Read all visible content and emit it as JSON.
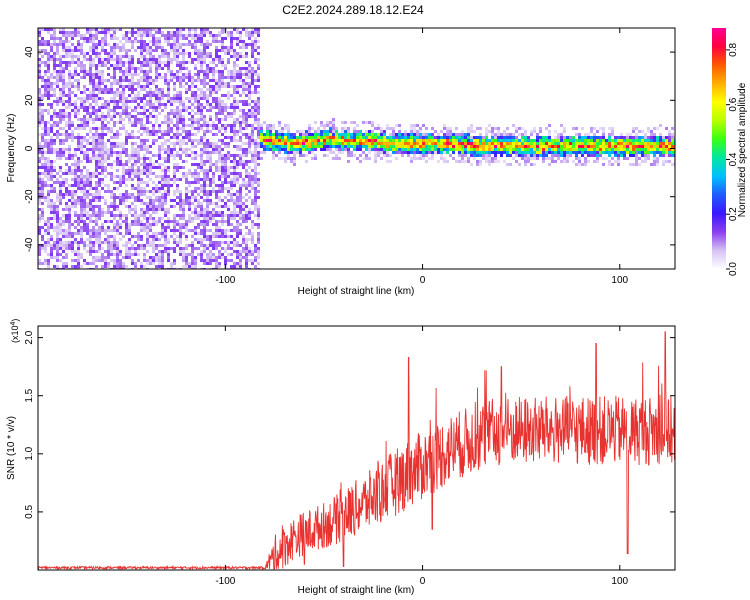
{
  "title": "C2E2.2024.289.18.12.E24",
  "colors": {
    "axis": "#000000",
    "snr_line": "#e8322f"
  },
  "chart_data": [
    {
      "type": "heatmap",
      "id": "spectrogram",
      "xlabel": "Height of straight line (km)",
      "ylabel": "Frequency (Hz)",
      "xlim": [
        -195,
        128
      ],
      "ylim": [
        -50,
        50
      ],
      "x_ticks": [
        -100,
        0,
        100
      ],
      "x_tick_labels": [
        "-100",
        "0",
        "100"
      ],
      "y_ticks": [
        -40,
        -20,
        0,
        20,
        40
      ],
      "y_tick_labels": [
        "-40",
        "-20",
        "0",
        "20",
        "40"
      ],
      "colorbar": {
        "label": "Normalized spectral amplitude",
        "range": [
          0.0,
          0.88
        ],
        "ticks": [
          0.0,
          0.2,
          0.4,
          0.6,
          0.8
        ],
        "tick_labels": [
          "0.0",
          "0.2",
          "0.4",
          "0.6",
          "0.8"
        ],
        "colormap": [
          "#ffffff",
          "#d6c2f3",
          "#8a3ff0",
          "#3a18ff",
          "#1f5bff",
          "#00bfff",
          "#00e6a0",
          "#39ff14",
          "#b6ff00",
          "#ffff00",
          "#ffb000",
          "#ff5a00",
          "#ff0040",
          "#ff0090"
        ]
      },
      "noise_region_x": [
        -195,
        -83
      ],
      "signal_region_x": [
        -83,
        128
      ],
      "signal_center_freq_hz": [
        [
          -90,
          1
        ],
        [
          -83,
          4
        ],
        [
          -75,
          3
        ],
        [
          -65,
          2
        ],
        [
          -55,
          3
        ],
        [
          -45,
          4
        ],
        [
          -35,
          3
        ],
        [
          -25,
          3
        ],
        [
          -15,
          2
        ],
        [
          -5,
          2
        ],
        [
          5,
          2
        ],
        [
          15,
          2
        ],
        [
          25,
          1
        ],
        [
          35,
          1
        ],
        [
          45,
          1
        ],
        [
          55,
          1
        ],
        [
          65,
          1
        ],
        [
          75,
          1
        ],
        [
          85,
          1
        ],
        [
          95,
          1
        ],
        [
          105,
          1
        ],
        [
          115,
          1
        ],
        [
          128,
          1
        ]
      ],
      "grid": false
    },
    {
      "type": "line",
      "id": "snr",
      "xlabel": "Height of straight line (km)",
      "ylabel": "SNR (10 * v/v)",
      "y_multiplier_label": "(x10",
      "y_multiplier_exp": "4",
      "y_multiplier_close": ")",
      "xlim": [
        -195,
        128
      ],
      "ylim": [
        0,
        2.1
      ],
      "x_ticks": [
        -100,
        0,
        100
      ],
      "x_tick_labels": [
        "-100",
        "0",
        "100"
      ],
      "y_ticks": [
        0.5,
        1.0,
        1.5,
        2.0
      ],
      "y_tick_labels": [
        "0.5",
        "1.0",
        "1.5",
        "2.0"
      ],
      "series": [
        {
          "color": "#e8322f",
          "envelope": [
            [
              -195,
              0.02
            ],
            [
              -80,
              0.02
            ],
            [
              -75,
              0.12
            ],
            [
              -65,
              0.28
            ],
            [
              -55,
              0.35
            ],
            [
              -45,
              0.42
            ],
            [
              -35,
              0.52
            ],
            [
              -25,
              0.62
            ],
            [
              -15,
              0.74
            ],
            [
              -5,
              0.85
            ],
            [
              5,
              0.95
            ],
            [
              15,
              1.05
            ],
            [
              25,
              1.12
            ],
            [
              35,
              1.18
            ],
            [
              45,
              1.2
            ],
            [
              55,
              1.2
            ],
            [
              65,
              1.2
            ],
            [
              75,
              1.2
            ],
            [
              85,
              1.2
            ],
            [
              95,
              1.2
            ],
            [
              105,
              1.2
            ],
            [
              115,
              1.2
            ],
            [
              128,
              1.2
            ]
          ],
          "noise_amplitude": [
            [
              -195,
              0.01
            ],
            [
              -80,
              0.01
            ],
            [
              -75,
              0.18
            ],
            [
              -50,
              0.2
            ],
            [
              -30,
              0.25
            ],
            [
              -10,
              0.3
            ],
            [
              10,
              0.3
            ],
            [
              40,
              0.3
            ],
            [
              80,
              0.3
            ],
            [
              128,
              0.3
            ]
          ],
          "peaks": [
            [
              -7,
              1.83
            ],
            [
              40,
              1.75
            ],
            [
              88,
              1.95
            ],
            [
              104,
              2.07
            ],
            [
              123,
              2.05
            ]
          ],
          "dips": [
            [
              104,
              0.14
            ],
            [
              -60,
              0.05
            ],
            [
              -40,
              0.03
            ],
            [
              5,
              0.35
            ]
          ]
        }
      ],
      "grid": false
    }
  ]
}
